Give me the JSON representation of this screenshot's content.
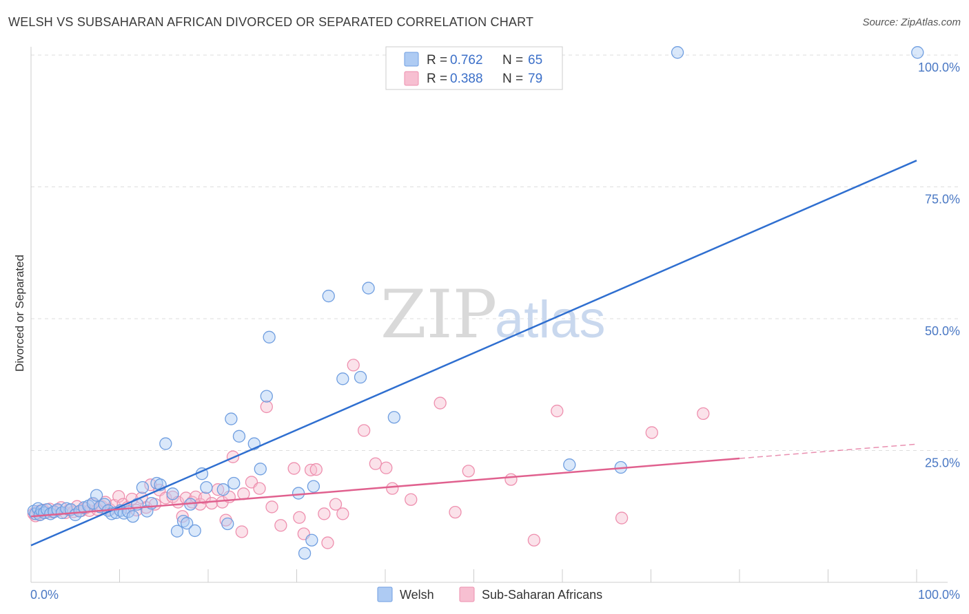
{
  "header": {
    "title": "WELSH VS SUBSAHARAN AFRICAN DIVORCED OR SEPARATED CORRELATION CHART",
    "source": "Source: ZipAtlas.com"
  },
  "watermark": {
    "zip": "ZIP",
    "atlas": "atlas"
  },
  "colors": {
    "welsh_fill": "#aecbf3",
    "welsh_stroke": "#6f9ee0",
    "welsh_line": "#2f6fd0",
    "ssa_fill": "#f7bfd1",
    "ssa_stroke": "#ee8fae",
    "ssa_line": "#e0608e",
    "grid": "#dddddd",
    "tick_text": "#4a78c4"
  },
  "legend": {
    "rows": [
      {
        "r_label": "R = ",
        "r_value": "0.762",
        "n_label": "N = ",
        "n_value": "65"
      },
      {
        "r_label": "R = ",
        "r_value": "0.388",
        "n_label": "N = ",
        "n_value": "79"
      }
    ]
  },
  "chart_data": {
    "type": "scatter",
    "title": "WELSH VS SUBSAHARAN AFRICAN DIVORCED OR SEPARATED CORRELATION CHART",
    "xlabel": "",
    "ylabel": "Divorced or Separated",
    "xlim": [
      0,
      100
    ],
    "ylim": [
      0,
      100
    ],
    "x_tick_labels": [
      "0.0%",
      "100.0%"
    ],
    "y_ticks": [
      25,
      50,
      75,
      100
    ],
    "y_tick_labels": [
      "25.0%",
      "50.0%",
      "75.0%",
      "100.0%"
    ],
    "legend_position": "top-center",
    "series": [
      {
        "name": "Welsh",
        "R": 0.762,
        "N": 65,
        "trend": {
          "x": [
            0,
            100
          ],
          "y": [
            7.0,
            80.0
          ]
        },
        "points": [
          [
            0.3,
            13.5
          ],
          [
            0.5,
            13.0
          ],
          [
            0.8,
            14.0
          ],
          [
            1.0,
            12.8
          ],
          [
            1.2,
            13.6
          ],
          [
            1.5,
            13.2
          ],
          [
            1.8,
            13.8
          ],
          [
            2.2,
            13.0
          ],
          [
            2.6,
            13.4
          ],
          [
            3.0,
            13.8
          ],
          [
            3.5,
            13.2
          ],
          [
            4.0,
            14.0
          ],
          [
            4.5,
            13.8
          ],
          [
            5.0,
            12.8
          ],
          [
            5.5,
            13.5
          ],
          [
            6.0,
            14.2
          ],
          [
            6.5,
            14.5
          ],
          [
            7.0,
            15.0
          ],
          [
            7.4,
            16.5
          ],
          [
            7.8,
            14.3
          ],
          [
            8.3,
            14.8
          ],
          [
            8.7,
            13.6
          ],
          [
            9.1,
            13.0
          ],
          [
            9.6,
            13.2
          ],
          [
            10.1,
            13.6
          ],
          [
            10.5,
            13.1
          ],
          [
            11.0,
            13.4
          ],
          [
            11.5,
            12.5
          ],
          [
            12.0,
            14.8
          ],
          [
            12.6,
            18.0
          ],
          [
            13.1,
            13.5
          ],
          [
            13.6,
            15.0
          ],
          [
            14.2,
            18.8
          ],
          [
            14.6,
            18.5
          ],
          [
            15.2,
            26.3
          ],
          [
            16.0,
            16.8
          ],
          [
            16.5,
            9.7
          ],
          [
            17.2,
            11.6
          ],
          [
            17.6,
            11.2
          ],
          [
            18.0,
            14.8
          ],
          [
            18.5,
            9.8
          ],
          [
            19.3,
            20.6
          ],
          [
            19.8,
            18.0
          ],
          [
            21.7,
            17.6
          ],
          [
            22.2,
            11.1
          ],
          [
            22.9,
            18.8
          ],
          [
            22.6,
            31.0
          ],
          [
            23.5,
            27.7
          ],
          [
            25.2,
            26.3
          ],
          [
            25.9,
            21.5
          ],
          [
            26.6,
            35.3
          ],
          [
            26.9,
            46.5
          ],
          [
            30.2,
            16.9
          ],
          [
            31.9,
            18.2
          ],
          [
            30.9,
            5.5
          ],
          [
            31.7,
            8.0
          ],
          [
            33.6,
            54.3
          ],
          [
            35.2,
            38.6
          ],
          [
            37.2,
            38.9
          ],
          [
            38.1,
            55.8
          ],
          [
            41.0,
            31.3
          ],
          [
            60.8,
            22.3
          ],
          [
            66.6,
            21.8
          ],
          [
            73.0,
            100.5
          ],
          [
            100.1,
            100.5
          ]
        ]
      },
      {
        "name": "Sub-Saharan Africans",
        "R": 0.388,
        "N": 79,
        "trend": {
          "x": [
            0,
            80
          ],
          "y": [
            12.5,
            23.5
          ]
        },
        "trend_dashed": {
          "x": [
            80,
            100
          ],
          "y": [
            23.5,
            26.2
          ]
        },
        "points": [
          [
            0.3,
            13.0
          ],
          [
            0.5,
            12.6
          ],
          [
            0.8,
            13.5
          ],
          [
            1.1,
            12.9
          ],
          [
            1.4,
            13.7
          ],
          [
            1.7,
            13.2
          ],
          [
            2.1,
            13.9
          ],
          [
            2.5,
            13.3
          ],
          [
            3.0,
            13.6
          ],
          [
            3.4,
            14.2
          ],
          [
            3.9,
            13.2
          ],
          [
            4.3,
            13.7
          ],
          [
            4.8,
            13.4
          ],
          [
            5.2,
            14.4
          ],
          [
            5.7,
            13.6
          ],
          [
            6.1,
            14.0
          ],
          [
            6.6,
            13.6
          ],
          [
            7.0,
            14.8
          ],
          [
            7.5,
            13.8
          ],
          [
            8.0,
            14.4
          ],
          [
            8.4,
            15.2
          ],
          [
            8.9,
            13.8
          ],
          [
            9.4,
            14.6
          ],
          [
            9.9,
            16.3
          ],
          [
            10.4,
            14.8
          ],
          [
            10.9,
            14.2
          ],
          [
            11.4,
            15.8
          ],
          [
            11.9,
            13.7
          ],
          [
            12.5,
            16.0
          ],
          [
            13.0,
            14.2
          ],
          [
            13.5,
            18.5
          ],
          [
            14.0,
            14.8
          ],
          [
            14.5,
            17.5
          ],
          [
            15.2,
            16.0
          ],
          [
            16.0,
            16.2
          ],
          [
            16.6,
            15.2
          ],
          [
            17.1,
            12.5
          ],
          [
            17.5,
            16.0
          ],
          [
            18.2,
            15.2
          ],
          [
            18.6,
            16.2
          ],
          [
            19.1,
            14.8
          ],
          [
            19.6,
            16.0
          ],
          [
            20.4,
            15.0
          ],
          [
            21.1,
            17.6
          ],
          [
            21.6,
            15.2
          ],
          [
            22.0,
            11.8
          ],
          [
            22.4,
            16.2
          ],
          [
            22.8,
            23.8
          ],
          [
            23.8,
            9.6
          ],
          [
            24.0,
            16.8
          ],
          [
            24.9,
            19.0
          ],
          [
            25.8,
            17.8
          ],
          [
            26.6,
            33.3
          ],
          [
            27.2,
            14.3
          ],
          [
            28.2,
            10.8
          ],
          [
            29.7,
            21.6
          ],
          [
            30.3,
            12.3
          ],
          [
            30.8,
            9.2
          ],
          [
            31.6,
            21.3
          ],
          [
            32.2,
            21.4
          ],
          [
            33.1,
            13.0
          ],
          [
            33.5,
            7.5
          ],
          [
            34.4,
            14.8
          ],
          [
            35.2,
            13.0
          ],
          [
            36.4,
            41.2
          ],
          [
            37.6,
            28.8
          ],
          [
            38.9,
            22.5
          ],
          [
            40.1,
            21.7
          ],
          [
            40.8,
            17.8
          ],
          [
            42.9,
            15.7
          ],
          [
            46.2,
            34.0
          ],
          [
            47.9,
            13.3
          ],
          [
            49.4,
            21.1
          ],
          [
            54.2,
            19.5
          ],
          [
            56.8,
            8.0
          ],
          [
            59.4,
            32.5
          ],
          [
            66.7,
            12.2
          ],
          [
            70.1,
            28.4
          ],
          [
            75.9,
            32.0
          ]
        ]
      }
    ]
  }
}
